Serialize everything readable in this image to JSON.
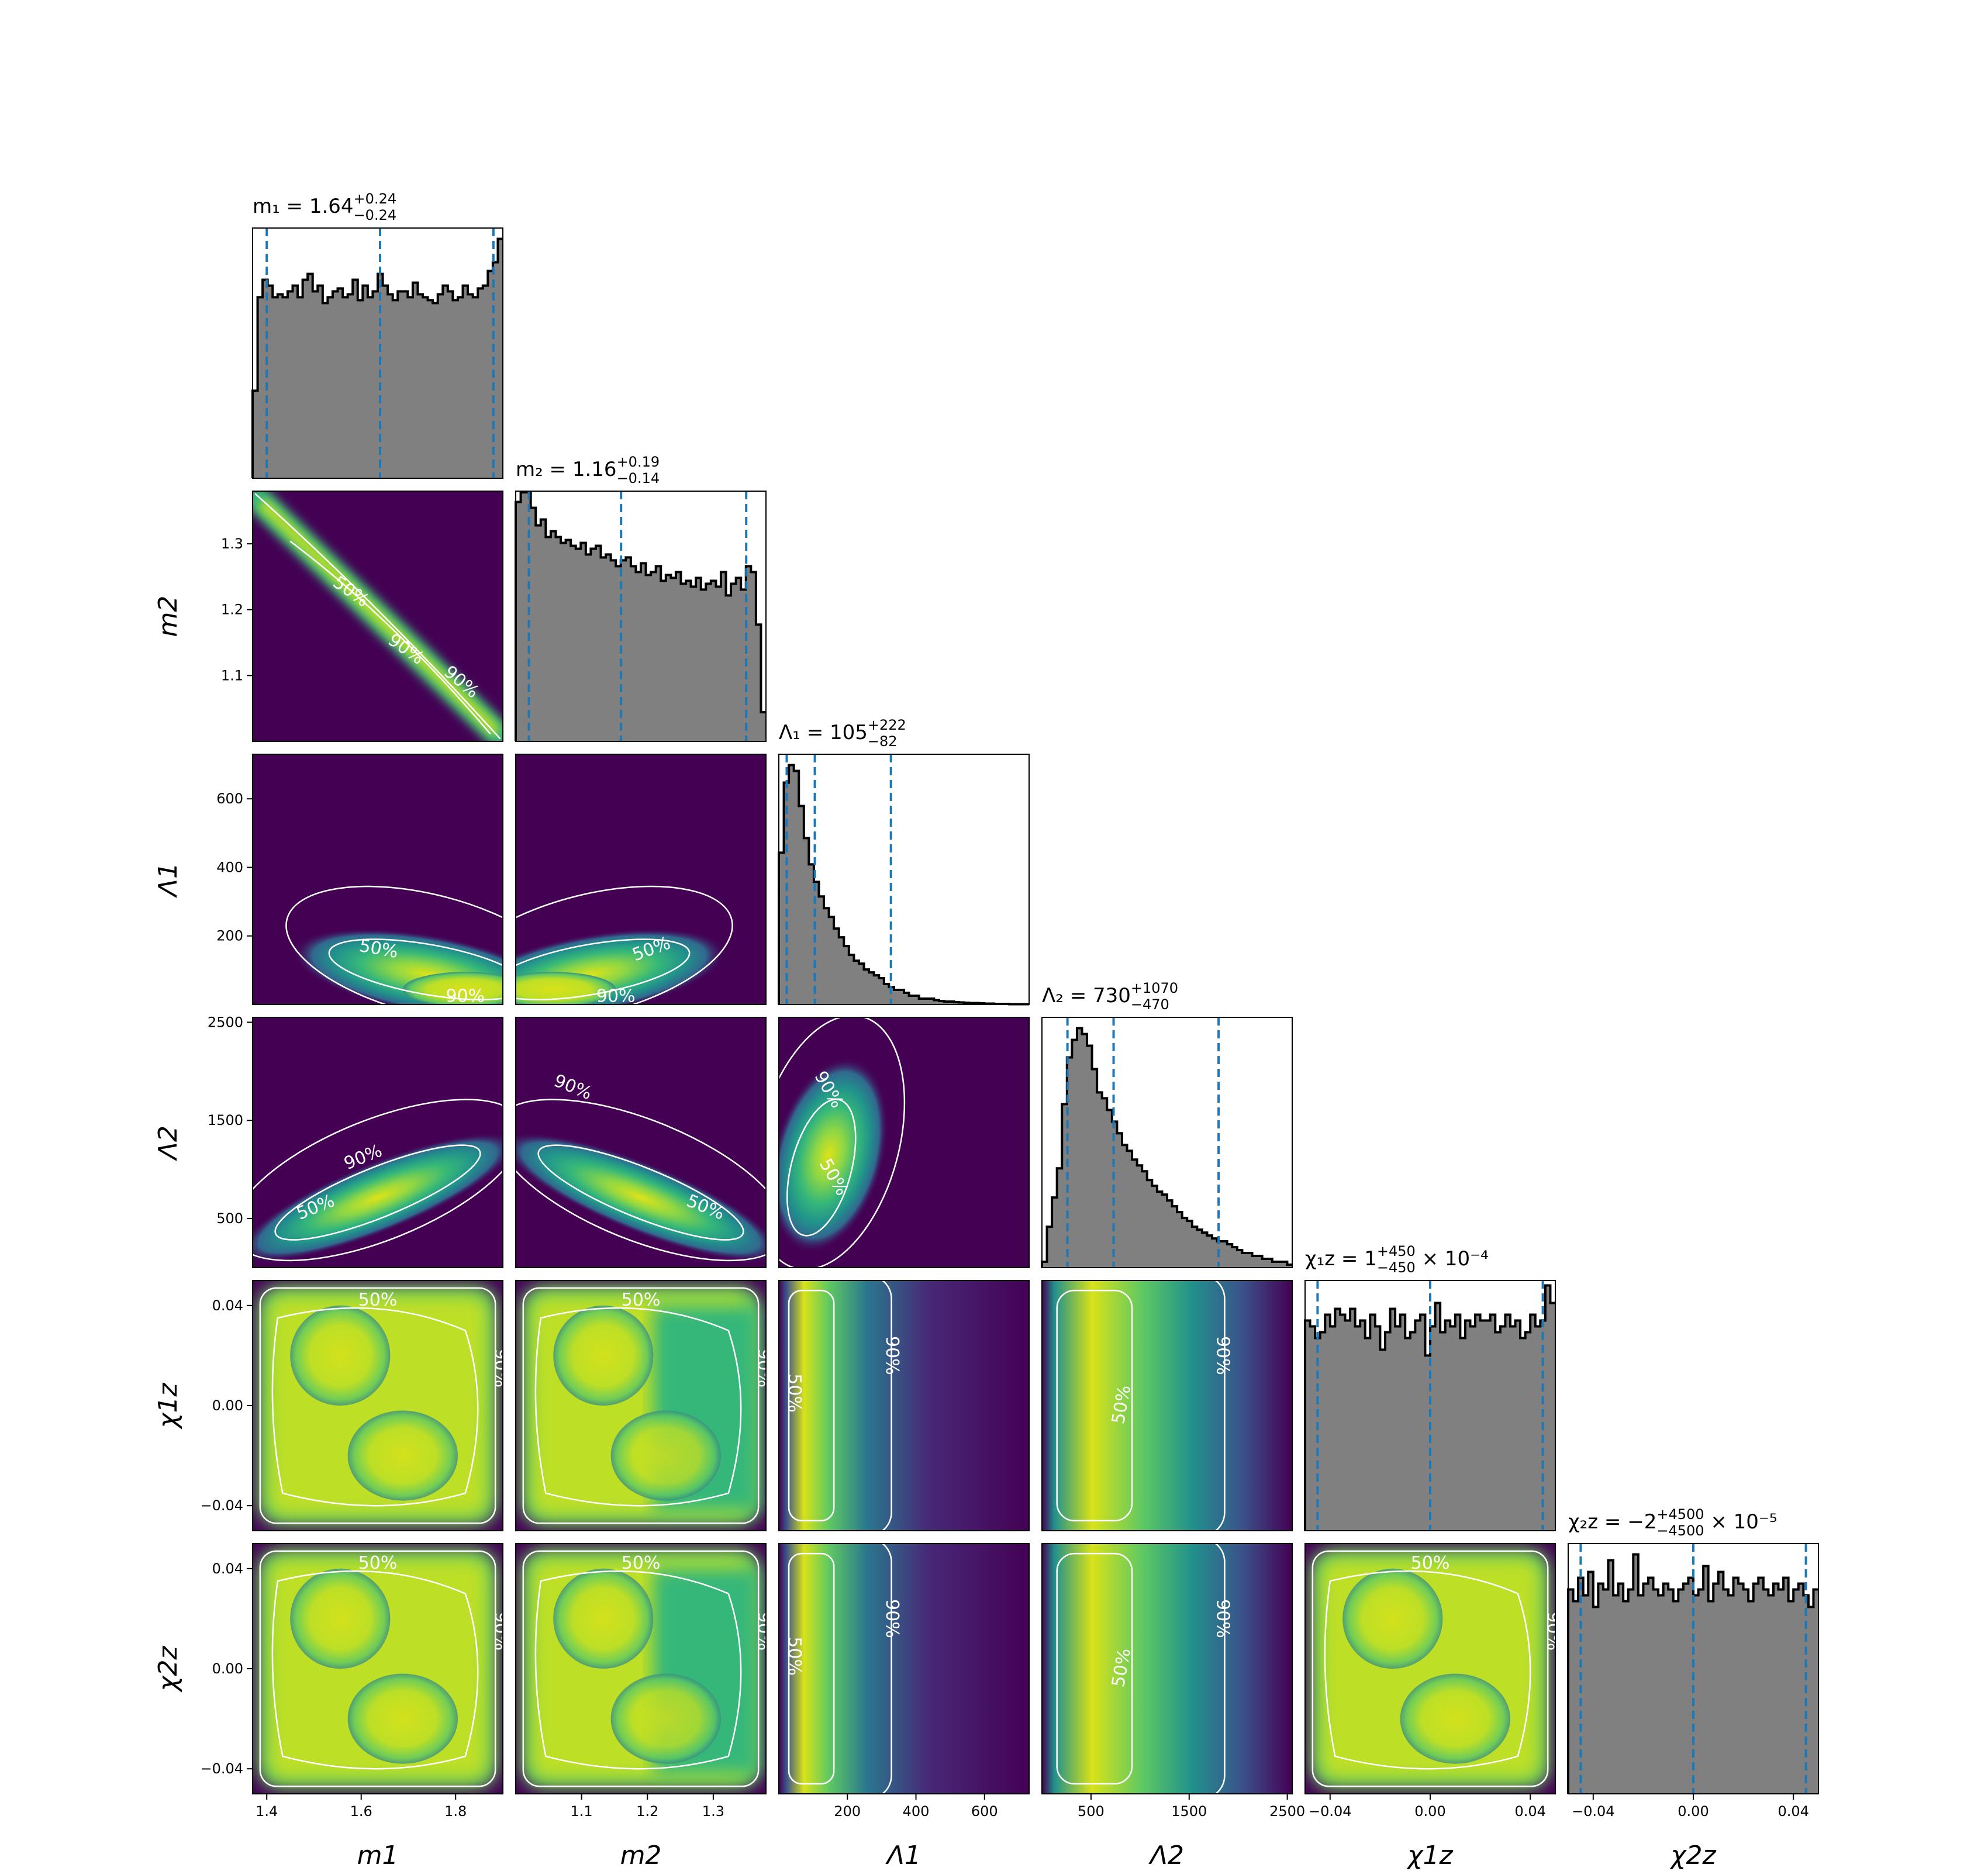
{
  "chart_data": {
    "type": "corner",
    "parameters": [
      {
        "id": "m1",
        "axis_label": "m1",
        "title_prefix": "m1 = ",
        "title": "m₁ = 1.64",
        "median": "1.64",
        "upper": "+0.24",
        "lower": "−0.24",
        "suffix": "",
        "range": [
          1.37,
          1.9
        ],
        "ticks": [
          1.4,
          1.6,
          1.8
        ],
        "tick_labels": [
          "1.4",
          "1.6",
          "1.8"
        ],
        "quantiles": [
          1.4,
          1.64,
          1.88
        ],
        "dist": "uniform"
      },
      {
        "id": "m2",
        "axis_label": "m2",
        "title_prefix": "m2 = ",
        "title": "m₂ = 1.16",
        "median": "1.16",
        "upper": "+0.19",
        "lower": "−0.14",
        "suffix": "",
        "range": [
          1.0,
          1.38
        ],
        "ticks": [
          1.1,
          1.2,
          1.3
        ],
        "tick_labels": [
          "1.1",
          "1.2",
          "1.3"
        ],
        "quantiles": [
          1.02,
          1.16,
          1.35
        ],
        "dist": "declining"
      },
      {
        "id": "L1",
        "axis_label": "Λ1",
        "title": "Λ₁ = 105",
        "median": "105",
        "upper": "+222",
        "lower": "−82",
        "suffix": "",
        "range": [
          0,
          730
        ],
        "ticks": [
          200,
          400,
          600
        ],
        "tick_labels": [
          "200",
          "400",
          "600"
        ],
        "quantiles": [
          23,
          105,
          327
        ],
        "dist": "skewed"
      },
      {
        "id": "L2",
        "axis_label": "Λ2",
        "title": "Λ₂ = 730",
        "median": "730",
        "upper": "+1070",
        "lower": "−470",
        "suffix": "",
        "range": [
          0,
          2550
        ],
        "ticks": [
          500,
          1500,
          2500
        ],
        "tick_labels": [
          "500",
          "1500",
          "2500"
        ],
        "quantiles": [
          260,
          730,
          1800
        ],
        "dist": "skewed"
      },
      {
        "id": "c1",
        "axis_label": "χ1z",
        "title": "χ₁z = 1",
        "median": "1",
        "upper": "+450",
        "lower": "−450",
        "suffix": " × 10⁻⁴",
        "range": [
          -0.05,
          0.05
        ],
        "ticks": [
          -0.04,
          0.0,
          0.04
        ],
        "tick_labels": [
          "−0.04",
          "0.00",
          "0.04"
        ],
        "quantiles": [
          -0.045,
          0.0,
          0.045
        ],
        "dist": "uniform"
      },
      {
        "id": "c2",
        "axis_label": "χ2z",
        "title": "χ₂z = −2",
        "median": "−2",
        "upper": "+4500",
        "lower": "−4500",
        "suffix": " × 10⁻⁵",
        "range": [
          -0.05,
          0.05
        ],
        "ticks": [
          -0.04,
          0.0,
          0.04
        ],
        "tick_labels": [
          "−0.04",
          "0.00",
          "0.04"
        ],
        "quantiles": [
          -0.045,
          0.0,
          0.045
        ],
        "dist": "uniform"
      }
    ],
    "histograms": {
      "m1": [
        0.3,
        0.62,
        0.68,
        0.66,
        0.62,
        0.63,
        0.62,
        0.64,
        0.66,
        0.62,
        0.68,
        0.7,
        0.64,
        0.66,
        0.6,
        0.62,
        0.64,
        0.65,
        0.62,
        0.63,
        0.68,
        0.61,
        0.66,
        0.62,
        0.64,
        0.7,
        0.66,
        0.63,
        0.61,
        0.64,
        0.64,
        0.62,
        0.67,
        0.63,
        0.62,
        0.61,
        0.6,
        0.63,
        0.66,
        0.64,
        0.61,
        0.62,
        0.66,
        0.63,
        0.62,
        0.65,
        0.66,
        0.71,
        0.74,
        0.82
      ],
      "m2": [
        0.82,
        0.95,
        0.9,
        0.8,
        0.74,
        0.76,
        0.7,
        0.72,
        0.7,
        0.68,
        0.69,
        0.67,
        0.66,
        0.68,
        0.64,
        0.66,
        0.67,
        0.63,
        0.64,
        0.62,
        0.6,
        0.62,
        0.63,
        0.6,
        0.58,
        0.61,
        0.57,
        0.58,
        0.6,
        0.55,
        0.57,
        0.56,
        0.58,
        0.54,
        0.55,
        0.53,
        0.56,
        0.52,
        0.54,
        0.55,
        0.53,
        0.58,
        0.5,
        0.54,
        0.56,
        0.52,
        0.6,
        0.58,
        0.4,
        0.1
      ],
      "L1": [
        0.52,
        0.76,
        0.82,
        0.8,
        0.68,
        0.57,
        0.48,
        0.42,
        0.37,
        0.33,
        0.3,
        0.26,
        0.23,
        0.2,
        0.17,
        0.15,
        0.14,
        0.12,
        0.11,
        0.1,
        0.09,
        0.07,
        0.06,
        0.05,
        0.05,
        0.04,
        0.03,
        0.03,
        0.02,
        0.02,
        0.02,
        0.015,
        0.012,
        0.01,
        0.01,
        0.008,
        0.007,
        0.006,
        0.005,
        0.005,
        0.004,
        0.003,
        0.003,
        0.002,
        0.002,
        0.002,
        0.001,
        0.001,
        0.001,
        0.001
      ],
      "L2": [
        0.02,
        0.14,
        0.24,
        0.34,
        0.56,
        0.72,
        0.78,
        0.82,
        0.8,
        0.76,
        0.68,
        0.6,
        0.58,
        0.54,
        0.5,
        0.46,
        0.42,
        0.4,
        0.37,
        0.35,
        0.33,
        0.3,
        0.28,
        0.26,
        0.25,
        0.23,
        0.21,
        0.19,
        0.17,
        0.16,
        0.14,
        0.13,
        0.12,
        0.11,
        0.1,
        0.09,
        0.09,
        0.08,
        0.07,
        0.06,
        0.05,
        0.05,
        0.04,
        0.04,
        0.03,
        0.03,
        0.02,
        0.02,
        0.02,
        0.01
      ],
      "c1": [
        0.72,
        0.7,
        0.66,
        0.68,
        0.74,
        0.7,
        0.76,
        0.74,
        0.72,
        0.76,
        0.7,
        0.72,
        0.66,
        0.74,
        0.7,
        0.62,
        0.68,
        0.76,
        0.7,
        0.74,
        0.66,
        0.68,
        0.72,
        0.74,
        0.6,
        0.7,
        0.78,
        0.68,
        0.72,
        0.7,
        0.74,
        0.66,
        0.72,
        0.7,
        0.74,
        0.72,
        0.72,
        0.74,
        0.68,
        0.7,
        0.74,
        0.7,
        0.72,
        0.66,
        0.68,
        0.74,
        0.7,
        0.72,
        0.84,
        0.78
      ],
      "c2": [
        0.7,
        0.66,
        0.74,
        0.68,
        0.76,
        0.64,
        0.72,
        0.7,
        0.8,
        0.68,
        0.72,
        0.66,
        0.7,
        0.82,
        0.68,
        0.72,
        0.74,
        0.7,
        0.68,
        0.72,
        0.7,
        0.66,
        0.7,
        0.72,
        0.74,
        0.68,
        0.7,
        0.78,
        0.66,
        0.72,
        0.76,
        0.7,
        0.68,
        0.74,
        0.72,
        0.7,
        0.66,
        0.72,
        0.74,
        0.7,
        0.68,
        0.72,
        0.7,
        0.74,
        0.66,
        0.7,
        0.72,
        0.68,
        0.64,
        0.7
      ]
    },
    "contour_levels": [
      "50%",
      "90%"
    ]
  }
}
